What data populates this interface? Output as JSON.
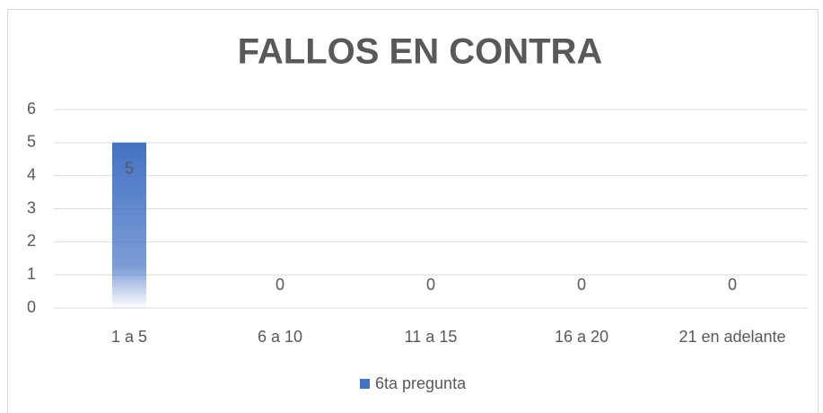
{
  "chart_data": {
    "type": "bar",
    "title": "FALLOS EN CONTRA",
    "categories": [
      "1 a 5",
      "6 a 10",
      "11 a 15",
      "16 a 20",
      "21 en adelante"
    ],
    "series": [
      {
        "name": "6ta pregunta",
        "color": "#4472c4",
        "values": [
          5,
          0,
          0,
          0,
          0
        ]
      }
    ],
    "ylim": [
      0,
      6
    ],
    "yticks": [
      0,
      1,
      2,
      3,
      4,
      5,
      6
    ],
    "grid": true,
    "legend": "bottom",
    "data_labels": true
  }
}
